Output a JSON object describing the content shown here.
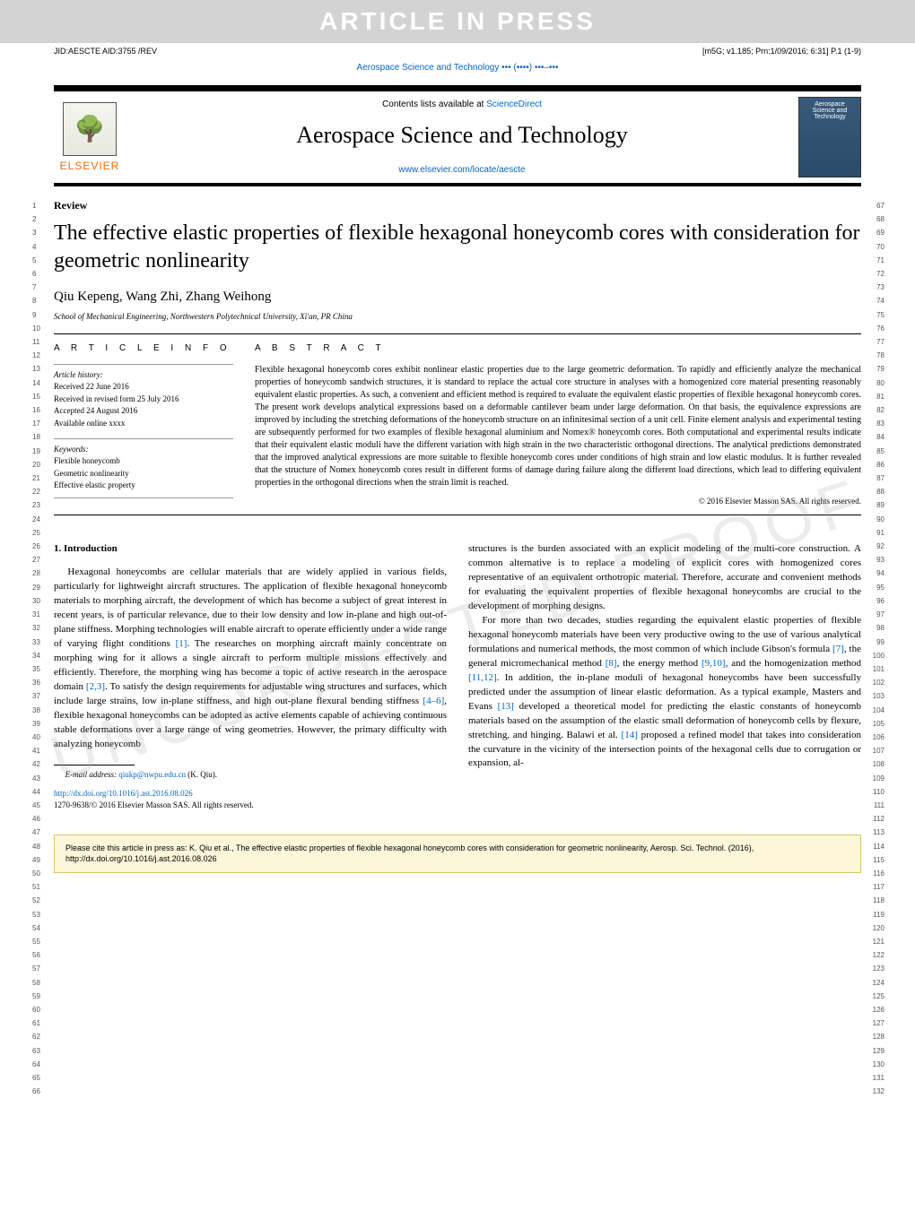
{
  "banner": {
    "text": "ARTICLE IN PRESS"
  },
  "header_meta": {
    "left": "JID:AESCTE  AID:3755 /REV",
    "right": "[m5G; v1.185; Prn:1/09/2016; 6:31] P.1 (1-9)"
  },
  "journal_line": {
    "prefix": "Aerospace Science and Technology ",
    "placeholder": "••• (••••) •••–•••"
  },
  "journal_box": {
    "elsevier": "ELSEVIER",
    "contents_prefix": "Contents lists available at ",
    "contents_link": "ScienceDirect",
    "title": "Aerospace Science and Technology",
    "url": "www.elsevier.com/locate/aescte",
    "cover_text": "Aerospace Science and Technology"
  },
  "article": {
    "type": "Review",
    "title": "The effective elastic properties of flexible hexagonal honeycomb cores with consideration for geometric nonlinearity",
    "authors": "Qiu Kepeng, Wang Zhi, Zhang Weihong",
    "affiliation": "School of Mechanical Engineering, Northwestern Polytechnical University, Xi'an, PR China"
  },
  "article_info": {
    "heading": "A R T I C L E   I N F O",
    "history_label": "Article history:",
    "history": [
      "Received 22 June 2016",
      "Received in revised form 25 July 2016",
      "Accepted 24 August 2016",
      "Available online xxxx"
    ],
    "keywords_label": "Keywords:",
    "keywords": [
      "Flexible honeycomb",
      "Geometric nonlinearity",
      "Effective elastic property"
    ]
  },
  "abstract": {
    "heading": "A B S T R A C T",
    "text": "Flexible hexagonal honeycomb cores exhibit nonlinear elastic properties due to the large geometric deformation. To rapidly and efficiently analyze the mechanical properties of honeycomb sandwich structures, it is standard to replace the actual core structure in analyses with a homogenized core material presenting reasonably equivalent elastic properties. As such, a convenient and efficient method is required to evaluate the equivalent elastic properties of flexible hexagonal honeycomb cores. The present work develops analytical expressions based on a deformable cantilever beam under large deformation. On that basis, the equivalence expressions are improved by including the stretching deformations of the honeycomb structure on an infinitesimal section of a unit cell. Finite element analysis and experimental testing are subsequently performed for two examples of flexible hexagonal aluminium and Nomex® honeycomb cores. Both computational and experimental results indicate that their equivalent elastic moduli have the different variation with high strain in the two characteristic orthogonal directions. The analytical predictions demonstrated that the improved analytical expressions are more suitable to flexible honeycomb cores under conditions of high strain and low elastic modulus. It is further revealed that the structure of Nomex honeycomb cores result in different forms of damage during failure along the different load directions, which lead to differing equivalent properties in the orthogonal directions when the strain limit is reached.",
    "copyright": "© 2016 Elsevier Masson SAS. All rights reserved."
  },
  "body": {
    "section_heading": "1. Introduction",
    "col1_p1": "Hexagonal honeycombs are cellular materials that are widely applied in various fields, particularly for lightweight aircraft structures. The application of flexible hexagonal honeycomb materials to morphing aircraft, the development of which has become a subject of great interest in recent years, is of particular relevance, due to their low density and low in-plane and high out-of-plane stiffness. Morphing technologies will enable aircraft to operate efficiently under a wide range of varying flight conditions [1]. The researches on morphing aircraft mainly concentrate on morphing wing for it allows a single aircraft to perform multiple missions effectively and efficiently. Therefore, the morphing wing has become a topic of active research in the aerospace domain [2,3]. To satisfy the design requirements for adjustable wing structures and surfaces, which include large strains, low in-plane stiffness, and high out-plane flexural bending stiffness [4–6], flexible hexagonal honeycombs can be adopted as active elements capable of achieving continuous stable deformations over a large range of wing geometries. However, the primary difficulty with analyzing honeycomb",
    "col2_p1": "structures is the burden associated with an explicit modeling of the multi-core construction. A common alternative is to replace a modeling of explicit cores with homogenized cores representative of an equivalent orthotropic material. Therefore, accurate and convenient methods for evaluating the equivalent properties of flexible hexagonal honeycombs are crucial to the development of morphing designs.",
    "col2_p2": "For more than two decades, studies regarding the equivalent elastic properties of flexible hexagonal honeycomb materials have been very productive owing to the use of various analytical formulations and numerical methods, the most common of which include Gibson's formula [7], the general micromechanical method [8], the energy method [9,10], and the homogenization method [11,12]. In addition, the in-plane moduli of hexagonal honeycombs have been successfully predicted under the assumption of linear elastic deformation. As a typical example, Masters and Evans [13] developed a theoretical model for predicting the elastic constants of honeycomb materials based on the assumption of the elastic small deformation of honeycomb cells by flexure, stretching, and hinging. Balawi et al. [14] proposed a refined model that takes into consideration the curvature in the vicinity of the intersection points of the hexagonal cells due to corrugation or expansion, al-"
  },
  "footnote": {
    "email_label": "E-mail address: ",
    "email": "qiukp@nwpu.edu.cn",
    "email_owner": " (K. Qiu)."
  },
  "doi": {
    "url": "http://dx.doi.org/10.1016/j.ast.2016.08.026",
    "issn": "1270-9638/© 2016 Elsevier Masson SAS. All rights reserved."
  },
  "cite_box": {
    "text": "Please cite this article in press as: K. Qiu et al., The effective elastic properties of flexible hexagonal honeycomb cores with consideration for geometric nonlinearity, Aerosp. Sci. Technol. (2016), http://dx.doi.org/10.1016/j.ast.2016.08.026"
  },
  "references_inline": {
    "r1": "[1]",
    "r23": "[2,3]",
    "r46": "[4–6]",
    "r7": "[7]",
    "r8": "[8]",
    "r910": "[9,10]",
    "r1112": "[11,12]",
    "r13": "[13]",
    "r14": "[14]"
  },
  "line_numbers": {
    "left_start": 1,
    "left_end": 66,
    "right_start": 67,
    "right_end": 132
  },
  "proof_watermark": "UNCORRECTED PROOF",
  "colors": {
    "banner_bg": "#d3d3d3",
    "banner_fg": "#ffffff",
    "link": "#0066cc",
    "elsevier_orange": "#ff6600",
    "citebox_bg": "#fdf6d9",
    "citebox_border": "#d4c86a",
    "watermark": "rgba(150,150,150,0.18)"
  }
}
